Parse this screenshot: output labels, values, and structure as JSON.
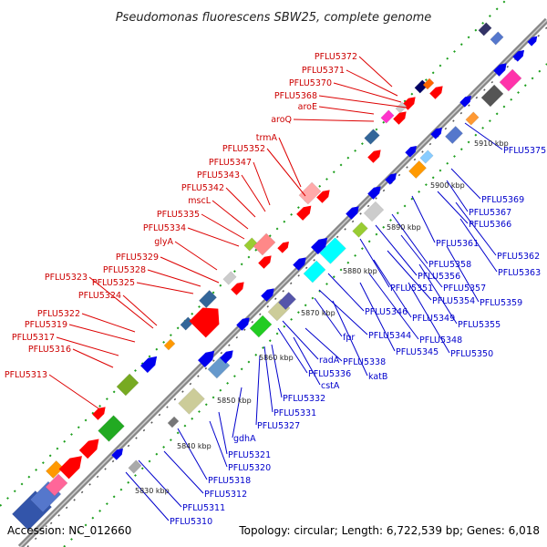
{
  "header": {
    "title": "Pseudomonas fluorescens SBW25, complete genome"
  },
  "footer": {
    "accession": "Accession: NC_012660",
    "summary": "Topology: circular; Length: 6,722,539 bp; Genes: 6,018"
  },
  "colors": {
    "forward_label": "#cc0000",
    "reverse_label": "#0000cc",
    "backbone": "#888888",
    "dots": "#33aa33"
  },
  "ruler": [
    "5830 kbp",
    "5840 kbp",
    "5850 kbp",
    "5860 kbp",
    "5870 kbp",
    "5880 kbp",
    "5890 kbp",
    "5900 kbp",
    "5910 kbp"
  ],
  "labels_forward": [
    "PFLU5372",
    "PFLU5371",
    "PFLU5370",
    "PFLU5368",
    "aroE",
    "aroQ",
    "trmA",
    "PFLU5352",
    "PFLU5347",
    "PFLU5343",
    "PFLU5342",
    "mscL",
    "PFLU5335",
    "PFLU5334",
    "glyA",
    "PFLU5329",
    "PFLU5328",
    "PFLU5325",
    "PFLU5323",
    "PFLU5324",
    "PFLU5322",
    "PFLU5319",
    "PFLU5317",
    "PFLU5316",
    "PFLU5313"
  ],
  "labels_reverse": [
    "PFLU5375",
    "PFLU5369",
    "PFLU5367",
    "PFLU5366",
    "PFLU5361",
    "PFLU5362",
    "PFLU5358",
    "PFLU5363",
    "PFLU5356",
    "PFLU5357",
    "PFLU5351",
    "PFLU5359",
    "PFLU5354",
    "PFLU5346",
    "PFLU5349",
    "PFLU5355",
    "PFLU5344",
    "PFLU5348",
    "fpr",
    "PFLU5345",
    "PFLU5350",
    "radA",
    "PFLU5338",
    "katB",
    "PFLU5336",
    "cstA",
    "PFLU5332",
    "PFLU5331",
    "PFLU5327",
    "gdhA",
    "PFLU5321",
    "PFLU5320",
    "PFLU5318",
    "PFLU5312",
    "PFLU5311",
    "PFLU5310"
  ]
}
